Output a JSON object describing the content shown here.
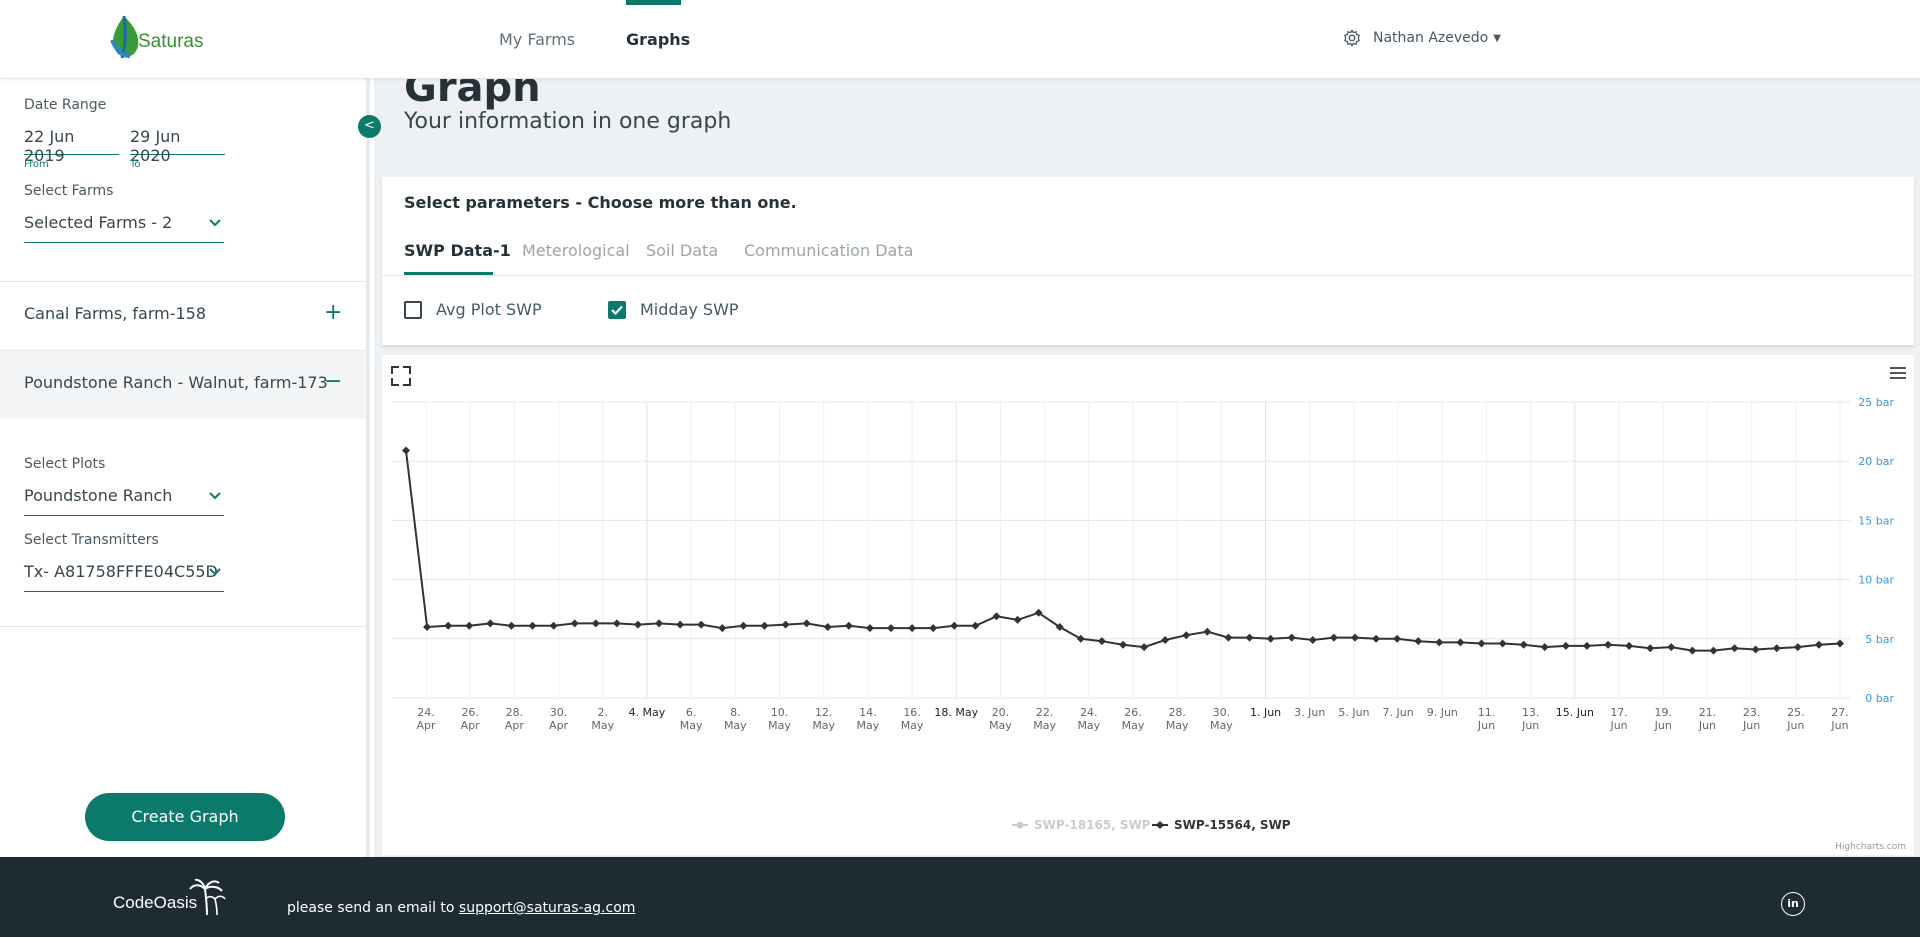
{
  "app": {
    "logo_text": "Saturas"
  },
  "nav": {
    "farms": "My Farms",
    "graphs": "Graphs"
  },
  "user": {
    "name": "Nathan Azevedo"
  },
  "sidebar": {
    "date_range_label": "Date Range",
    "from_value": "22 Jun 2019",
    "from_label": "From",
    "to_value": "29 Jun 2020",
    "to_label": "To",
    "select_farms_label": "Select Farms",
    "select_farms_value": "Selected Farms - 2",
    "farms": [
      {
        "name": "Canal Farms, farm-158",
        "sign": "+"
      },
      {
        "name": "Poundstone Ranch - Walnut, farm-173",
        "sign": "−"
      }
    ],
    "select_plots_label": "Select Plots",
    "select_plots_value": "Poundstone Ranch",
    "select_tx_label": "Select Transmitters",
    "select_tx_value": "Tx- A81758FFFE04C55D",
    "create_button": "Create Graph"
  },
  "main": {
    "title": "Graph",
    "subtitle": "Your information in one graph",
    "params_title": "Select parameters - Choose more than one.",
    "tabs": [
      "SWP Data-1",
      "Meterological",
      "Soil Data",
      "Communication Data"
    ],
    "checkboxes": [
      {
        "label": "Avg Plot SWP",
        "checked": false
      },
      {
        "label": "Midday SWP",
        "checked": true
      }
    ]
  },
  "chart_data": {
    "type": "line",
    "y_unit": "bar",
    "ylim": [
      0,
      25
    ],
    "y_ticks": [
      "0 bar",
      "5 bar",
      "10 bar",
      "15 bar",
      "20 bar",
      "25 bar"
    ],
    "x_labels": [
      {
        "l1": "24.",
        "l2": "Apr"
      },
      {
        "l1": "26.",
        "l2": "Apr"
      },
      {
        "l1": "28.",
        "l2": "Apr"
      },
      {
        "l1": "30.",
        "l2": "Apr"
      },
      {
        "l1": "2.",
        "l2": "May"
      },
      {
        "l1": "4. May",
        "l2": "",
        "bold": true
      },
      {
        "l1": "6.",
        "l2": "May"
      },
      {
        "l1": "8.",
        "l2": "May"
      },
      {
        "l1": "10.",
        "l2": "May"
      },
      {
        "l1": "12.",
        "l2": "May"
      },
      {
        "l1": "14.",
        "l2": "May"
      },
      {
        "l1": "16.",
        "l2": "May"
      },
      {
        "l1": "18. May",
        "l2": "",
        "bold": true
      },
      {
        "l1": "20.",
        "l2": "May"
      },
      {
        "l1": "22.",
        "l2": "May"
      },
      {
        "l1": "24.",
        "l2": "May"
      },
      {
        "l1": "26.",
        "l2": "May"
      },
      {
        "l1": "28.",
        "l2": "May"
      },
      {
        "l1": "30.",
        "l2": "May"
      },
      {
        "l1": "1. Jun",
        "l2": "",
        "bold": true
      },
      {
        "l1": "3. Jun",
        "l2": ""
      },
      {
        "l1": "5. Jun",
        "l2": ""
      },
      {
        "l1": "7. Jun",
        "l2": ""
      },
      {
        "l1": "9. Jun",
        "l2": ""
      },
      {
        "l1": "11.",
        "l2": "Jun"
      },
      {
        "l1": "13.",
        "l2": "Jun"
      },
      {
        "l1": "15. Jun",
        "l2": "",
        "bold": true
      },
      {
        "l1": "17.",
        "l2": "Jun"
      },
      {
        "l1": "19.",
        "l2": "Jun"
      },
      {
        "l1": "21.",
        "l2": "Jun"
      },
      {
        "l1": "23.",
        "l2": "Jun"
      },
      {
        "l1": "25.",
        "l2": "Jun"
      },
      {
        "l1": "27.",
        "l2": "Jun"
      }
    ],
    "series": [
      {
        "name": "SWP-18165, SWP",
        "visible": false,
        "values": []
      },
      {
        "name": "SWP-15564, SWP",
        "visible": true,
        "values": [
          20.9,
          6.0,
          6.1,
          6.1,
          6.3,
          6.1,
          6.1,
          6.1,
          6.3,
          6.3,
          6.3,
          6.2,
          6.3,
          6.2,
          6.2,
          5.9,
          6.1,
          6.1,
          6.2,
          6.3,
          6.0,
          6.1,
          5.9,
          5.9,
          5.9,
          5.9,
          6.1,
          6.1,
          6.9,
          6.6,
          7.2,
          6.0,
          5.0,
          4.8,
          4.5,
          4.3,
          4.9,
          5.3,
          5.6,
          5.1,
          5.1,
          5.0,
          5.1,
          4.9,
          5.1,
          5.1,
          5.0,
          5.0,
          4.8,
          4.7,
          4.7,
          4.6,
          4.6,
          4.5,
          4.3,
          4.4,
          4.4,
          4.5,
          4.4,
          4.2,
          4.3,
          4.0,
          4.0,
          4.2,
          4.1,
          4.2,
          4.3,
          4.5,
          4.6
        ]
      }
    ],
    "credits": "Highcharts.com"
  },
  "footer": {
    "brand": "CodeOasis",
    "message": "please send an email to",
    "email": "support@saturas-ag.com"
  },
  "colors": {
    "accent": "#0b7a6b",
    "footer_bg": "#1e2b33",
    "line": "#333333",
    "axis_label": "#3d97d8"
  }
}
